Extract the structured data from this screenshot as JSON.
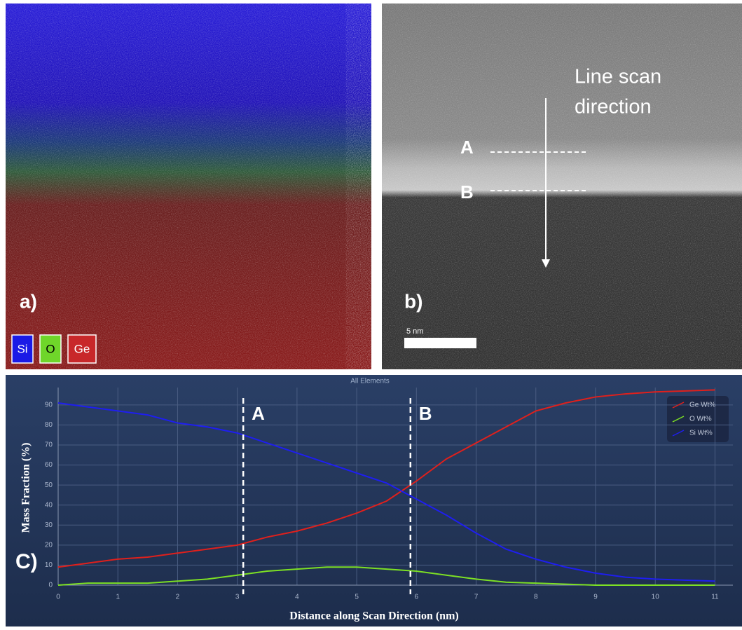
{
  "panel_a": {
    "label": "a)",
    "legend": [
      {
        "name": "Si",
        "color": "#1a1ae6"
      },
      {
        "name": "O",
        "color": "#6fd62a"
      },
      {
        "name": "Ge",
        "color": "#c8282a"
      }
    ]
  },
  "panel_b": {
    "label": "b)",
    "scan_label_lines": [
      "Line scan",
      "direction"
    ],
    "marker_a": "A",
    "marker_b": "B",
    "scale_bar": "5 nm"
  },
  "chart_data": {
    "type": "line",
    "title": "All Elements",
    "panel_label": "C)",
    "x_label": "Distance along Scan Direction (nm)",
    "y_label": "Mass Fraction (%)",
    "x": [
      0,
      0.5,
      1,
      1.5,
      2,
      2.5,
      3,
      3.5,
      4,
      4.5,
      5,
      5.5,
      6,
      6.5,
      7,
      7.5,
      8,
      8.5,
      9,
      9.5,
      10,
      10.5,
      11
    ],
    "series": [
      {
        "name": "Ge Wt%",
        "color": "#e0201c",
        "values": [
          9,
          11,
          13,
          14,
          16,
          18,
          20,
          24,
          27,
          31,
          36,
          42,
          52,
          63,
          71,
          79,
          87,
          91,
          94,
          95.5,
          96.5,
          97,
          97.5
        ]
      },
      {
        "name": "O Wt%",
        "color": "#7de024",
        "values": [
          0,
          1,
          1,
          1,
          2,
          3,
          5,
          7,
          8,
          9,
          9,
          8,
          7,
          5,
          3,
          1.5,
          1,
          0.5,
          0,
          0,
          0,
          0,
          0
        ]
      },
      {
        "name": "Si Wt%",
        "color": "#1e1ef0",
        "values": [
          91,
          89,
          87,
          85,
          81,
          79,
          76,
          71,
          66,
          61,
          56,
          51,
          43,
          35,
          26,
          18,
          13,
          9,
          6,
          4,
          3,
          2.5,
          2
        ]
      }
    ],
    "markers": [
      {
        "label": "A",
        "x": 3.1
      },
      {
        "label": "B",
        "x": 5.9
      }
    ],
    "xlim": [
      0,
      11.3
    ],
    "ylim": [
      0,
      98.7
    ],
    "xticks": [
      0,
      1,
      2,
      3,
      4,
      5,
      6,
      7,
      8,
      9,
      10,
      11
    ],
    "yticks": [
      0,
      10,
      20,
      30,
      40,
      50,
      60,
      70,
      80,
      90
    ],
    "grid": true,
    "legend": "top-right"
  }
}
